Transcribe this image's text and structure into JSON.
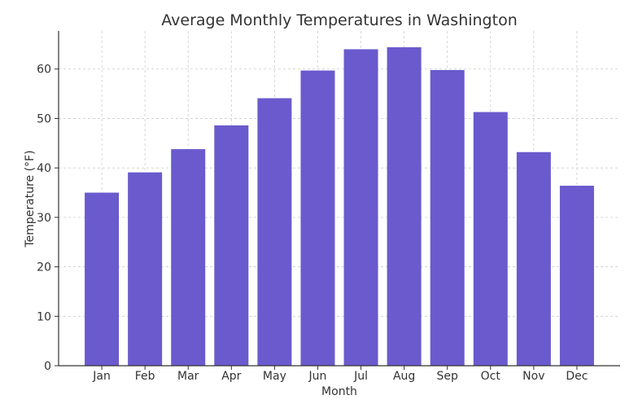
{
  "chart_data": {
    "type": "bar",
    "title": "Average Monthly Temperatures in Washington",
    "xlabel": "Month",
    "ylabel": "Temperature (°F)",
    "categories": [
      "Jan",
      "Feb",
      "Mar",
      "Apr",
      "May",
      "Jun",
      "Jul",
      "Aug",
      "Sep",
      "Oct",
      "Nov",
      "Dec"
    ],
    "values": [
      35.0,
      39.1,
      43.8,
      48.6,
      54.1,
      59.7,
      64.0,
      64.4,
      59.8,
      51.3,
      43.2,
      36.4
    ],
    "ylim": [
      0,
      67.7
    ],
    "yticks": [
      0,
      10,
      20,
      30,
      40,
      50,
      60
    ],
    "grid": true,
    "bar_color": "#6a5acd"
  }
}
